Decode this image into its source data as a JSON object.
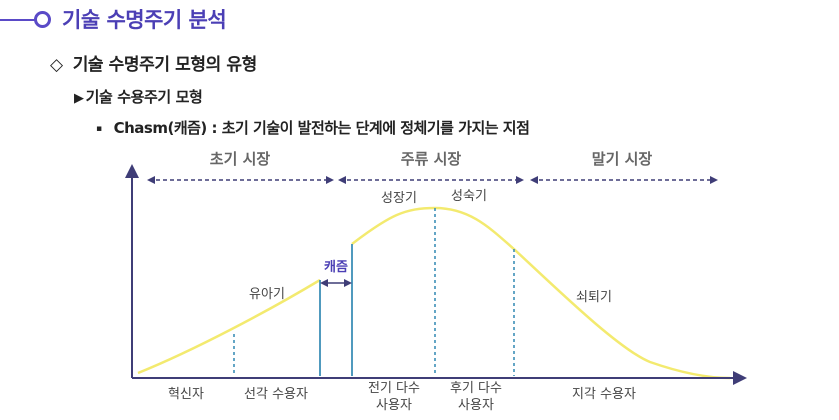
{
  "heading1": {
    "title": "기술 수명주기 분석"
  },
  "heading2": {
    "marker": "◇",
    "title": "기술 수명주기 모형의 유형"
  },
  "heading3": {
    "marker": "▶",
    "title": "기술 수용주기 모형"
  },
  "bullet": {
    "marker": "▪",
    "text": "Chasm(캐즘) : 초기 기술이 발전하는 단계에 정체기를 가지는 지점"
  },
  "diagram": {
    "segments": [
      "초기 시장",
      "주류 시장",
      "말기 시장"
    ],
    "stage_labels": [
      "유아기",
      "캐즘",
      "성장기",
      "성숙기",
      "쇠퇴기"
    ],
    "groups": [
      "혁신자",
      "선각 수용자",
      "전기 다수",
      "사용자",
      "후기 다수",
      "사용자",
      "지각 수용자"
    ],
    "colors": {
      "curve": "#f3ea6f",
      "axis": "#3f3d77",
      "segment_arrow": "#3f3d77",
      "divider": "#3d8fb7",
      "chasm_label": "#4b3fb5",
      "heading": "#4b3fb5"
    }
  }
}
